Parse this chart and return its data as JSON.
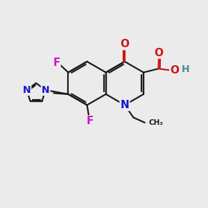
{
  "bg_color": "#ebebeb",
  "bond_color": "#1a1a1a",
  "bond_width": 1.6,
  "atom_colors": {
    "C": "#1a1a1a",
    "N": "#1414cc",
    "O": "#cc1414",
    "F": "#cc14cc",
    "H": "#4a9090"
  },
  "font_size_atom": 11,
  "font_size_small": 9
}
